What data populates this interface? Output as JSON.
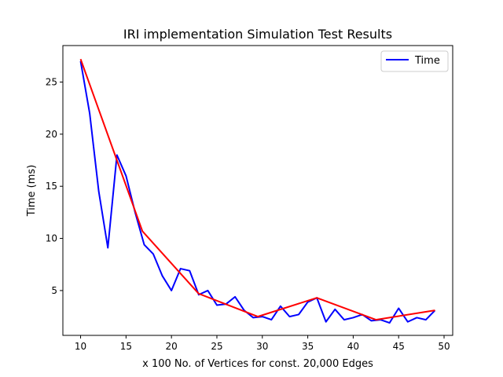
{
  "chart_data": {
    "type": "line",
    "title": "IRI implementation Simulation Test Results",
    "xlabel": "x 100 No. of Vertices for const. 20,000 Edges",
    "ylabel": "Time (ms)",
    "xlim": [
      8.05,
      50.95
    ],
    "ylim": [
      0.7,
      28.5
    ],
    "xticks": [
      10,
      15,
      20,
      25,
      30,
      35,
      40,
      45,
      50
    ],
    "yticks": [
      5,
      10,
      15,
      20,
      25
    ],
    "grid": false,
    "legend_position": "top-right",
    "series": [
      {
        "name": "Time",
        "color": "#0000ff",
        "x": [
          10,
          11,
          12,
          13,
          14,
          15,
          16,
          17,
          18,
          19,
          20,
          21,
          22,
          23,
          24,
          25,
          26,
          27,
          28,
          29,
          30,
          31,
          32,
          33,
          34,
          35,
          36,
          37,
          38,
          39,
          40,
          41,
          42,
          43,
          44,
          45,
          46,
          47,
          48,
          49
        ],
        "y": [
          27.0,
          22.0,
          14.5,
          9.1,
          18.0,
          16.0,
          12.5,
          9.4,
          8.5,
          6.4,
          5.0,
          7.1,
          6.9,
          4.6,
          5.0,
          3.6,
          3.7,
          4.4,
          3.1,
          2.4,
          2.5,
          2.2,
          3.5,
          2.5,
          2.7,
          3.9,
          4.3,
          2.0,
          3.2,
          2.2,
          2.4,
          2.7,
          2.1,
          2.2,
          1.9,
          3.3,
          2.0,
          2.4,
          2.2,
          3.1
        ]
      },
      {
        "color": "#ff0000",
        "x": [
          10,
          16.8,
          23,
          29.5,
          36,
          42.5,
          49
        ],
        "y": [
          27.2,
          10.7,
          4.7,
          2.5,
          4.3,
          2.2,
          3.1
        ]
      }
    ]
  }
}
